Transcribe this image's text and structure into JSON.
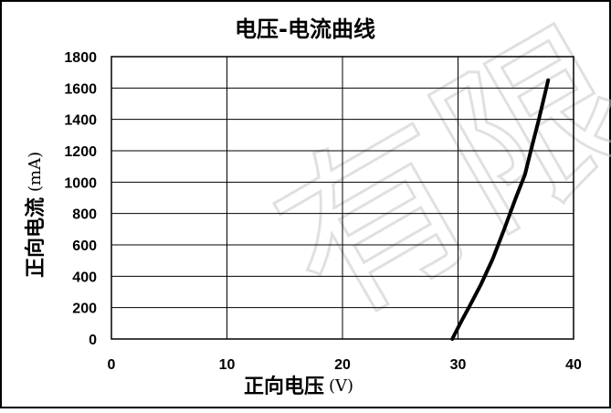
{
  "chart_data": {
    "type": "line",
    "title": "电压-电流曲线",
    "xlabel": "正向电压",
    "xunit": "(V)",
    "ylabel": "正向电流",
    "yunit": "(mA)",
    "xlim": [
      0,
      40
    ],
    "ylim": [
      0,
      1800
    ],
    "xticks": [
      0,
      10,
      20,
      30,
      40
    ],
    "yticks": [
      0,
      200,
      400,
      600,
      800,
      1000,
      1200,
      1400,
      1600,
      1800
    ],
    "grid": true,
    "series": [
      {
        "x": [
          29.5,
          30.2,
          31.0,
          32.0,
          33.0,
          34.0,
          35.0,
          35.8,
          36.3,
          37.0,
          37.8
        ],
        "y": [
          0,
          100,
          210,
          350,
          510,
          700,
          900,
          1050,
          1200,
          1400,
          1650
        ]
      }
    ],
    "colors": {
      "line": "#000000",
      "grid": "#000000",
      "background": "#ffffff"
    },
    "watermark": "有限公司"
  }
}
